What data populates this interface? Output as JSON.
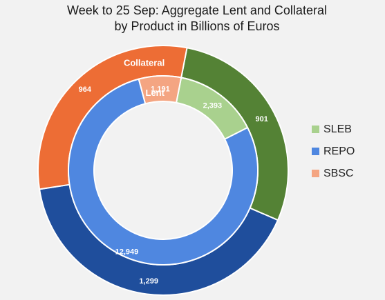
{
  "chart_data": {
    "type": "donut",
    "title_lines": [
      "Week to 25 Sep:  Aggregate Lent and Collateral",
      "by Product in Billions of Euros"
    ],
    "categories": [
      "SLEB",
      "REPO",
      "SBSC"
    ],
    "colors": {
      "outer": [
        "#548235",
        "#1f4e9c",
        "#ed6d35"
      ],
      "inner": [
        "#a9d18e",
        "#4f87e0",
        "#f4a582"
      ]
    },
    "legend_colors": [
      "#a9d18e",
      "#4f87e0",
      "#f4a582"
    ],
    "legend_position": "right",
    "series": [
      {
        "name": "Collateral",
        "ring": "outer",
        "values": [
          901,
          1299,
          964
        ],
        "labels": [
          "901",
          "1,299",
          "964"
        ]
      },
      {
        "name": "Lent",
        "ring": "inner",
        "values": [
          2393,
          12949,
          1191
        ],
        "labels": [
          "2,393",
          "12,949",
          "1,191"
        ]
      }
    ]
  }
}
